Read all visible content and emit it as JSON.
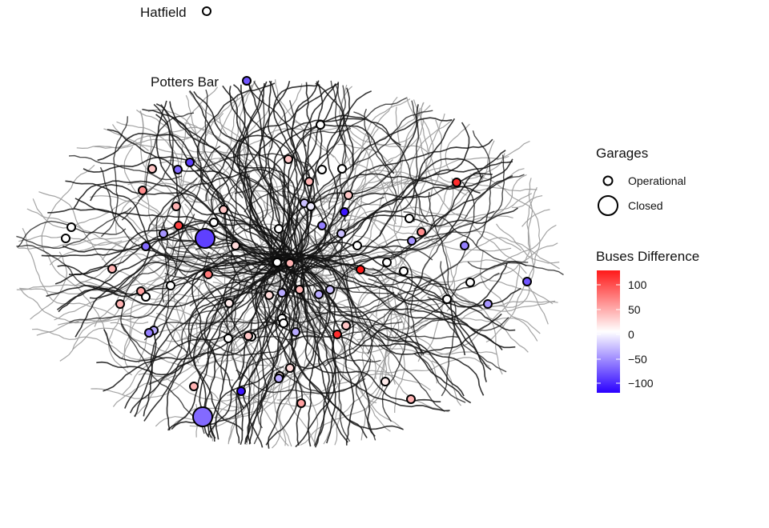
{
  "labels": {
    "hatfield": "Hatfield",
    "potters_bar": "Potters Bar"
  },
  "legend": {
    "garages_title": "Garages",
    "operational": "Operational",
    "closed": "Closed",
    "difference_title": "Buses Difference",
    "ticks": [
      "100",
      "50",
      "0",
      "−50",
      "−100"
    ]
  },
  "colors": {
    "high": "#ff1a1a",
    "mid": "#ffffff",
    "low": "#2a00ff",
    "route_dark": "#111111",
    "route_light": "#9a9a9a"
  },
  "chart_data": {
    "type": "scatter",
    "color_scale": {
      "min": -120,
      "max": 120,
      "mid": 0
    },
    "garages": [
      {
        "name": "Hatfield",
        "status": "Operational",
        "diff": 0
      },
      {
        "name": "Potters Bar",
        "status": "Operational",
        "diff": -80
      },
      {
        "status": "Operational",
        "diff": 0
      },
      {
        "status": "Operational",
        "diff": 30
      },
      {
        "status": "Operational",
        "diff": 0
      },
      {
        "status": "Operational",
        "diff": 0
      },
      {
        "status": "Operational",
        "diff": 30
      },
      {
        "status": "Operational",
        "diff": -70
      },
      {
        "status": "Operational",
        "diff": -90
      },
      {
        "status": "Operational",
        "diff": 40
      },
      {
        "status": "Operational",
        "diff": 60
      },
      {
        "status": "Operational",
        "diff": 30
      },
      {
        "status": "Operational",
        "diff": -30
      },
      {
        "status": "Operational",
        "diff": -10
      },
      {
        "status": "Operational",
        "diff": -110
      },
      {
        "status": "Operational",
        "diff": 110
      },
      {
        "status": "Operational",
        "diff": 40
      },
      {
        "status": "Operational",
        "diff": 30
      },
      {
        "status": "Operational",
        "diff": 0
      },
      {
        "status": "Operational",
        "diff": 0
      },
      {
        "status": "Operational",
        "diff": -60
      },
      {
        "status": "Operational",
        "diff": 100
      },
      {
        "status": "Operational",
        "diff": 0
      },
      {
        "status": "Operational",
        "diff": -50
      },
      {
        "status": "Operational",
        "diff": -30
      },
      {
        "status": "Operational",
        "diff": 60
      },
      {
        "status": "Operational",
        "diff": 0
      },
      {
        "status": "Operational",
        "diff": 0
      },
      {
        "status": "Operational",
        "diff": -50
      },
      {
        "status": "Operational",
        "diff": -60
      },
      {
        "status": "Operational",
        "diff": 20
      },
      {
        "status": "Operational",
        "diff": -70
      },
      {
        "status": "Operational",
        "diff": 0
      },
      {
        "status": "Operational",
        "diff": 40
      },
      {
        "status": "Operational",
        "diff": 0
      },
      {
        "status": "Operational",
        "diff": 40
      },
      {
        "status": "Operational",
        "diff": 70
      },
      {
        "status": "Operational",
        "diff": 0
      },
      {
        "status": "Operational",
        "diff": 0
      },
      {
        "status": "Operational",
        "diff": 0
      },
      {
        "status": "Operational",
        "diff": -40
      },
      {
        "status": "Operational",
        "diff": 120
      },
      {
        "status": "Operational",
        "diff": -30
      },
      {
        "status": "Operational",
        "diff": 40
      },
      {
        "status": "Operational",
        "diff": 20
      },
      {
        "status": "Operational",
        "diff": -40
      },
      {
        "status": "Operational",
        "diff": 10
      },
      {
        "status": "Operational",
        "diff": 0
      },
      {
        "status": "Operational",
        "diff": -80
      },
      {
        "status": "Operational",
        "diff": 0
      },
      {
        "status": "Operational",
        "diff": 50
      },
      {
        "status": "Operational",
        "diff": 40
      },
      {
        "status": "Operational",
        "diff": 0
      },
      {
        "status": "Operational",
        "diff": -40
      },
      {
        "status": "Operational",
        "diff": -60
      },
      {
        "status": "Operational",
        "diff": -50
      },
      {
        "status": "Operational",
        "diff": 30
      },
      {
        "status": "Operational",
        "diff": 0
      },
      {
        "status": "Operational",
        "diff": 0
      },
      {
        "status": "Operational",
        "diff": 0
      },
      {
        "status": "Operational",
        "diff": -40
      },
      {
        "status": "Operational",
        "diff": 0
      },
      {
        "status": "Operational",
        "diff": 30
      },
      {
        "status": "Operational",
        "diff": 20
      },
      {
        "status": "Operational",
        "diff": 10
      },
      {
        "status": "Operational",
        "diff": -40
      },
      {
        "status": "Operational",
        "diff": 10
      },
      {
        "status": "Operational",
        "diff": 40
      },
      {
        "status": "Operational",
        "diff": 110
      },
      {
        "status": "Operational",
        "diff": 40
      },
      {
        "status": "Operational",
        "diff": -110
      },
      {
        "status": "Operational",
        "diff": 50
      },
      {
        "status": "Operational",
        "diff": 30
      },
      {
        "status": "Operational",
        "diff": -30
      },
      {
        "status": "Operational",
        "diff": 0
      },
      {
        "status": "Operational",
        "diff": -90
      },
      {
        "status": "Operational",
        "diff": 0
      },
      {
        "status": "Operational",
        "diff": 40
      },
      {
        "status": "Operational",
        "diff": 30
      },
      {
        "status": "Operational",
        "diff": 0
      },
      {
        "status": "Operational",
        "diff": -60
      },
      {
        "status": "Operational",
        "diff": 30
      },
      {
        "status": "Operational",
        "diff": 30
      },
      {
        "status": "Closed",
        "diff": -90
      },
      {
        "status": "Closed",
        "diff": -70
      }
    ]
  }
}
